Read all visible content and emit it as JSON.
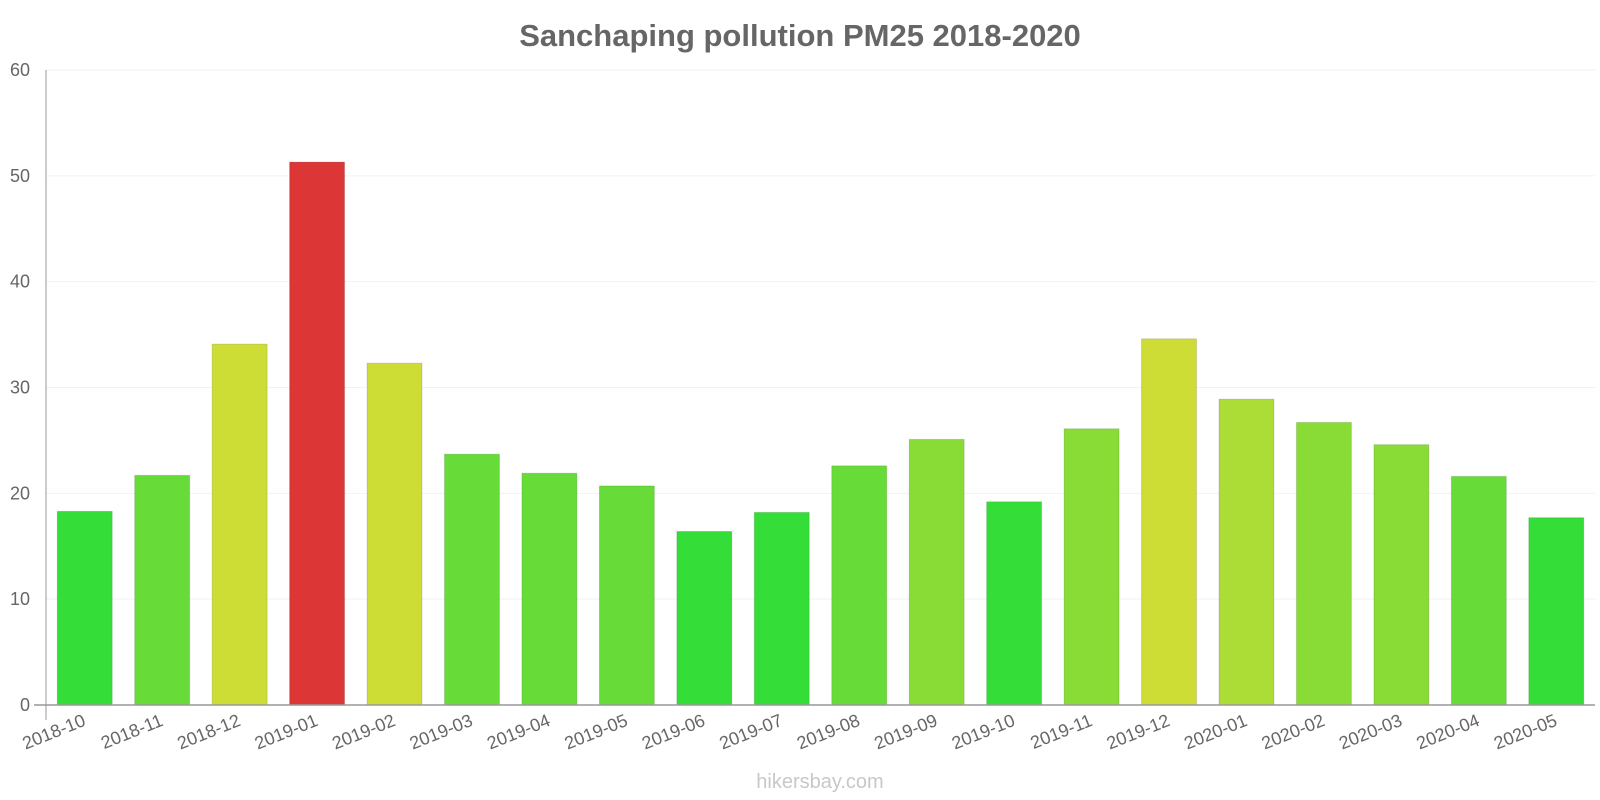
{
  "chart_data": {
    "type": "bar",
    "title": "Sanchaping pollution PM25 2018-2020",
    "xlabel": "",
    "ylabel": "",
    "ylim": [
      0,
      60
    ],
    "yticks": [
      0,
      10,
      20,
      30,
      40,
      50,
      60
    ],
    "grid": true,
    "categories": [
      "2018-10",
      "2018-11",
      "2018-12",
      "2019-01",
      "2019-02",
      "2019-03",
      "2019-04",
      "2019-05",
      "2019-06",
      "2019-07",
      "2019-08",
      "2019-09",
      "2019-10",
      "2019-11",
      "2019-12",
      "2020-01",
      "2020-02",
      "2020-03",
      "2020-04",
      "2020-05"
    ],
    "values": [
      18.3,
      21.7,
      34.1,
      51.3,
      32.3,
      23.7,
      21.9,
      20.7,
      16.4,
      18.2,
      22.6,
      25.1,
      19.2,
      26.1,
      34.6,
      28.9,
      26.7,
      24.6,
      21.6,
      17.7
    ],
    "colors": [
      "#34dd38",
      "#67dc38",
      "#cddd36",
      "#dc3636",
      "#cddd36",
      "#67dc38",
      "#67dc38",
      "#67dc38",
      "#34dd38",
      "#34dd38",
      "#67dc38",
      "#89dc36",
      "#34dd38",
      "#89dc36",
      "#cddd36",
      "#acdc36",
      "#89dc36",
      "#89dc36",
      "#67dc38",
      "#34dd38"
    ]
  },
  "watermark": "hikersbay.com"
}
